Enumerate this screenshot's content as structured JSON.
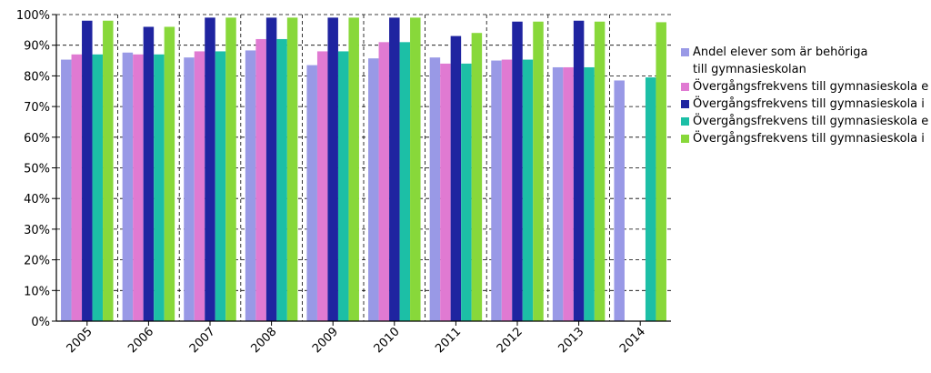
{
  "chart_data": {
    "type": "bar",
    "title": "",
    "xlabel": "",
    "ylabel": "",
    "ylim": [
      0,
      100
    ],
    "y_ticks": [
      "0%",
      "10%",
      "20%",
      "30%",
      "40%",
      "50%",
      "60%",
      "70%",
      "80%",
      "90%",
      "100%"
    ],
    "grid": "dashed horizontal gridlines",
    "legend_position": "right",
    "categories": [
      "2005",
      "2006",
      "2007",
      "2008",
      "2009",
      "2010",
      "2011",
      "2012",
      "2013",
      "2014"
    ],
    "series": [
      {
        "name": "Andel elever som är behöriga\ntill gymnasieskolan",
        "color": "#9999e6",
        "values": [
          85.3,
          87.6,
          86.0,
          88.3,
          83.5,
          85.7,
          86.0,
          85.0,
          82.8,
          78.5
        ]
      },
      {
        "name": "Övergångsfrekvens till gymnasieskola e",
        "color": "#e07ad2",
        "values": [
          87.0,
          87.0,
          88.0,
          92.0,
          88.0,
          91.0,
          84.0,
          85.3,
          82.8,
          null
        ]
      },
      {
        "name": "Övergångsfrekvens till gymnasieskola i",
        "color": "#1f24a0",
        "values": [
          98.0,
          96.0,
          99.0,
          99.0,
          99.0,
          99.0,
          93.0,
          97.7,
          98.0,
          null
        ]
      },
      {
        "name": "Övergångsfrekvens till gymnasieskola e",
        "color": "#1cbfa6",
        "values": [
          87.0,
          87.0,
          88.0,
          92.0,
          88.0,
          91.0,
          84.0,
          85.3,
          82.8,
          79.5
        ]
      },
      {
        "name": "Övergångsfrekvens till gymnasieskola i",
        "color": "#88d83a",
        "values": [
          98.0,
          96.0,
          99.0,
          99.0,
          99.0,
          99.0,
          94.0,
          97.7,
          97.7,
          97.5
        ]
      }
    ]
  }
}
